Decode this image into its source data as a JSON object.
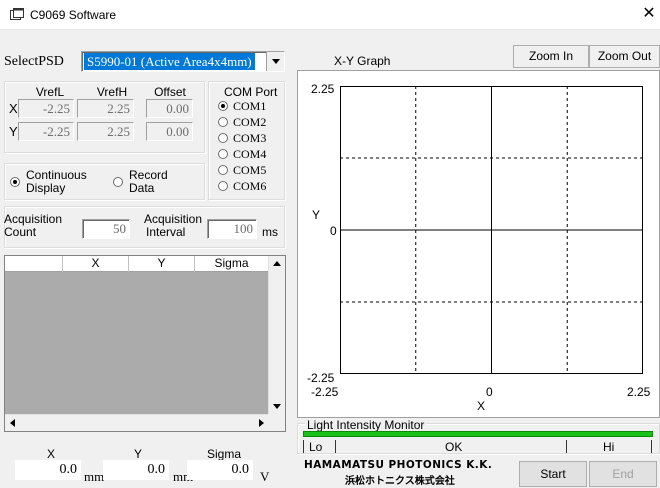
{
  "window": {
    "title": "C9069 Software",
    "close_glyph": "✕"
  },
  "psd": {
    "label": "SelectPSD",
    "selected": "S5990-01 (Active Area4x4mm)"
  },
  "vref": {
    "headers": [
      "VrefL",
      "VrefH",
      "Offset"
    ],
    "rows": [
      {
        "label": "X",
        "vrefl": "-2.25",
        "vrefh": "2.25",
        "offset": "0.00"
      },
      {
        "label": "Y",
        "vrefl": "-2.25",
        "vrefh": "2.25",
        "offset": "0.00"
      }
    ]
  },
  "com": {
    "title": "COM Port",
    "ports": [
      "COM1",
      "COM2",
      "COM3",
      "COM4",
      "COM5",
      "COM6"
    ],
    "selected": "COM1"
  },
  "display": {
    "continuous_l1": "Continuous",
    "continuous_l2": "Display",
    "record_l1": "Record",
    "record_l2": "Data",
    "selected": "continuous"
  },
  "acq": {
    "count_l1": "Acquisition",
    "count_l2": "Count",
    "count_value": "50",
    "interval_l1": "Acquisition",
    "interval_l2": "Interval",
    "interval_value": "100",
    "interval_unit": "ms"
  },
  "table": {
    "columns": [
      "",
      "X",
      "Y",
      "Sigma"
    ]
  },
  "readout": {
    "x_label": "X",
    "x_value": "0.0",
    "x_unit": "mm",
    "y_label": "Y",
    "y_value": "0.0",
    "y_unit": "mm",
    "sigma_label": "Sigma",
    "sigma_value": "0.0",
    "sigma_unit": "V"
  },
  "graph": {
    "title": "X-Y Graph",
    "zoom_in": "Zoom In",
    "zoom_out": "Zoom Out",
    "y_max": "2.25",
    "y_mid": "0",
    "y_min": "-2.25",
    "y_axis": "Y",
    "x_min": "-2.25",
    "x_mid": "0",
    "x_max": "2.25",
    "x_axis": "X"
  },
  "chart_data": {
    "type": "scatter",
    "title": "X-Y Graph",
    "xlabel": "X",
    "ylabel": "Y",
    "xlim": [
      -2.25,
      2.25
    ],
    "ylim": [
      -2.25,
      2.25
    ],
    "x_ticks": [
      "-2.25",
      "0",
      "2.25"
    ],
    "y_ticks": [
      "2.25",
      "0",
      "-2.25"
    ],
    "grid": true,
    "series": []
  },
  "monitor": {
    "title": "Light Intensity Monitor",
    "lo": "Lo",
    "ok": "OK",
    "hi": "Hi",
    "level": 1.0,
    "bar_color": "#19c019"
  },
  "brand": {
    "name": "HAMAMATSU PHOTONICS K.K.",
    "name_jp": "浜松ホトニクス株式会社"
  },
  "actions": {
    "start": "Start",
    "end": "End"
  }
}
